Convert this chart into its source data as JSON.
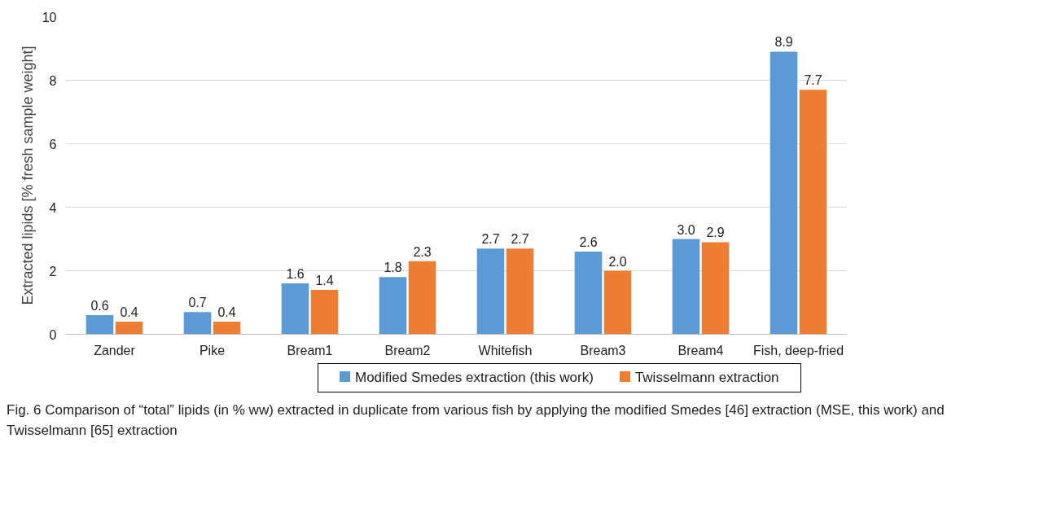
{
  "chart_data": {
    "type": "bar",
    "ylabel": "Extracted lipids [% fresh sample weight]",
    "categories": [
      "Zander",
      "Pike",
      "Bream1",
      "Bream2",
      "Whitefish",
      "Bream3",
      "Bream4",
      "Fish, deep-fried"
    ],
    "series": [
      {
        "name": "Modified Smedes extraction (this work)",
        "color": "#5b9bd5",
        "values": [
          0.6,
          0.7,
          1.6,
          1.8,
          2.7,
          2.6,
          3.0,
          8.9
        ],
        "value_labels": [
          "0.6",
          "0.7",
          "1.6",
          "1.8",
          "2.7",
          "2.6",
          "3.0",
          "8.9"
        ]
      },
      {
        "name": "Twisselmann extraction",
        "color": "#ed7d31",
        "values": [
          0.4,
          0.4,
          1.4,
          2.3,
          2.7,
          2.0,
          2.9,
          7.7
        ],
        "value_labels": [
          "0.4",
          "0.4",
          "1.4",
          "2.3",
          "2.7",
          "2.0",
          "2.9",
          "7.7"
        ]
      }
    ],
    "ylim": [
      0,
      10
    ],
    "yticks": [
      0,
      2,
      4,
      6,
      8,
      10
    ],
    "grid": "y",
    "legend": "bottom",
    "annotations": [
      "Fig. 6 Comparison of “total” lipids (in % ww) extracted in duplicate from various fish by applying the modified Smedes [46] extraction (MSE, this work) and Twisselmann [65] extraction"
    ]
  }
}
